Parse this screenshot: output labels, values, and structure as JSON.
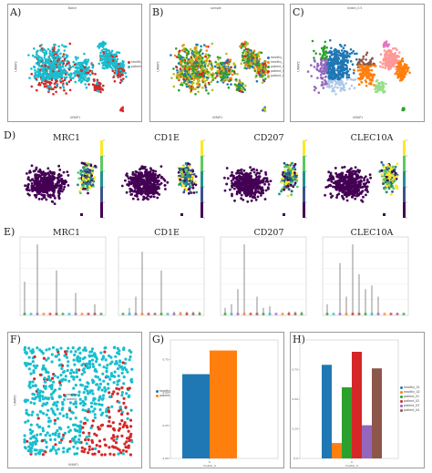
{
  "figure": {
    "panel_labels": [
      "A)",
      "B)",
      "C)",
      "D)",
      "E)",
      "F)",
      "G)",
      "H)"
    ]
  },
  "umap_panels": {
    "a": {
      "title": "Batch",
      "xlabel": "UMAP1",
      "ylabel": "UMAP2",
      "legend": [
        "healthy",
        "patient"
      ]
    },
    "b": {
      "title": "sample",
      "xlabel": "UMAP1",
      "ylabel": "UMAP2",
      "legend": [
        "healthy_01",
        "healthy_02",
        "patient_01",
        "patient_02",
        "patient_03"
      ]
    },
    "c": {
      "title": "leiden_0.5",
      "xlabel": "UMAP1",
      "ylabel": "UMAP2"
    }
  },
  "genes": [
    "MRC1",
    "CD1E",
    "CD207",
    "CLEC10A"
  ],
  "colors": {
    "healthy": "#d62728",
    "patient": "#17becf",
    "blue": "#1f77b4",
    "orange": "#ff7f0e",
    "green": "#2ca02c",
    "red": "#d62728",
    "purple": "#9467bd",
    "brown": "#8c564b",
    "viridis_low": "#440154",
    "viridis_high": "#fde725"
  },
  "panel_f": {
    "xlabel": "UMAP1",
    "ylabel": "UMAP2",
    "legend": [
      "healthy",
      "patient"
    ]
  },
  "chart_data": [
    {
      "type": "bar",
      "panel": "G",
      "categories": [
        "0"
      ],
      "series": [
        {
          "values": [
            0.64
          ]
        },
        {
          "values": [
            0.82
          ]
        }
      ],
      "xlabel": "Cluster_0",
      "ylim": [
        0.0,
        0.9
      ],
      "yticks": [
        "0.00",
        "0.25",
        "0.50",
        "0.75"
      ],
      "legend": [
        "healthy",
        "patient"
      ]
    },
    {
      "type": "bar",
      "panel": "H",
      "categories": [
        "0"
      ],
      "series": [
        {
          "values": [
            0.79
          ]
        },
        {
          "values": [
            0.13
          ]
        },
        {
          "values": [
            0.6
          ]
        },
        {
          "values": [
            0.9
          ]
        },
        {
          "values": [
            0.28
          ]
        },
        {
          "values": [
            0.76
          ]
        }
      ],
      "xlabel": "Cluster_0",
      "ylim": [
        0.0,
        1.0
      ],
      "yticks": [
        "0.0",
        "0.25",
        "0.50",
        "0.75"
      ],
      "legend": [
        "healthy_01",
        "healthy_02",
        "patient_01",
        "patient_02",
        "patient_03",
        "patient_04"
      ]
    }
  ]
}
